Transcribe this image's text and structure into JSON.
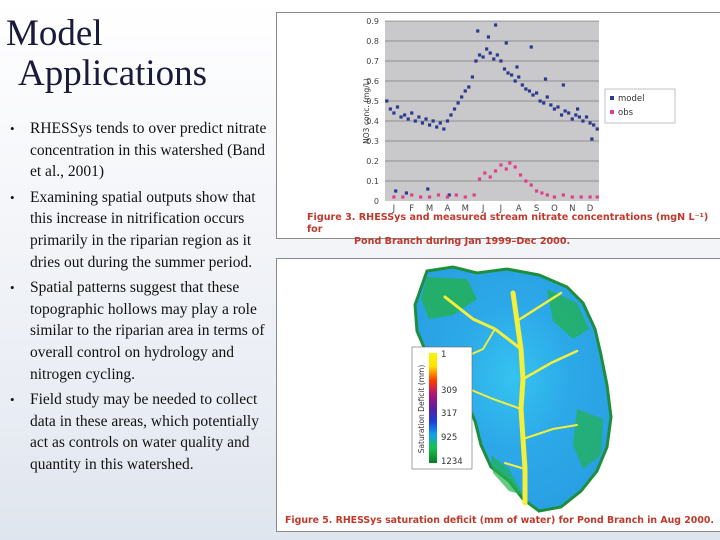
{
  "slide": {
    "title_line1": "Model",
    "title_line2": "Applications",
    "bullets": [
      "RHESSys tends to over predict nitrate concentration in this watershed (Band et al., 2001)",
      "Examining spatial outputs show that this increase in nitrification occurs primarily in the riparian region as it dries out during the summer period.",
      "Spatial patterns suggest that these topographic hollows may play a role similar to the riparian area in terms of overall control on hydrology and nitrogen cycling.",
      "Field study may be needed to collect data in these areas, which potentially act as controls on water quality and quantity in this watershed."
    ]
  },
  "figure3": {
    "caption_line1": "Figure 3. RHESSys and measured stream nitrate concentrations (mgN L⁻¹) for",
    "caption_line2": "Pond Branch during Jan 1999–Dec 2000.",
    "ylabel": "NO3 conc. (mg/L)",
    "colors": {
      "model": "#2b3a8f",
      "obs": "#e0408a",
      "plot_bg": "#c9c9cc"
    }
  },
  "chart_data": {
    "type": "scatter",
    "categories": [
      "J",
      "F",
      "M",
      "A",
      "M",
      "J",
      "J",
      "A",
      "S",
      "O",
      "N",
      "D"
    ],
    "ylabel": "NO3 conc. (mg/L)",
    "y_ticks": [
      "0",
      "0.1",
      "0.2",
      "0.3",
      "0.4",
      "0.5",
      "0.6",
      "0.7",
      "0.8",
      "0.9"
    ],
    "ylim": [
      0,
      0.9
    ],
    "grid": true,
    "legend_position": "right",
    "series": [
      {
        "name": "model",
        "color": "#2b3a8f",
        "points": [
          [
            0.1,
            0.5
          ],
          [
            0.3,
            0.46
          ],
          [
            0.5,
            0.44
          ],
          [
            0.7,
            0.47
          ],
          [
            0.9,
            0.42
          ],
          [
            1.1,
            0.43
          ],
          [
            1.3,
            0.41
          ],
          [
            1.5,
            0.44
          ],
          [
            1.7,
            0.4
          ],
          [
            1.9,
            0.42
          ],
          [
            2.1,
            0.39
          ],
          [
            2.3,
            0.41
          ],
          [
            2.5,
            0.38
          ],
          [
            2.7,
            0.4
          ],
          [
            2.9,
            0.37
          ],
          [
            3.1,
            0.39
          ],
          [
            3.3,
            0.36
          ],
          [
            3.5,
            0.4
          ],
          [
            3.7,
            0.43
          ],
          [
            3.9,
            0.46
          ],
          [
            4.1,
            0.49
          ],
          [
            4.3,
            0.52
          ],
          [
            4.5,
            0.55
          ],
          [
            4.7,
            0.57
          ],
          [
            4.9,
            0.62
          ],
          [
            5.1,
            0.7
          ],
          [
            5.3,
            0.73
          ],
          [
            5.5,
            0.72
          ],
          [
            5.7,
            0.76
          ],
          [
            5.9,
            0.74
          ],
          [
            6.1,
            0.71
          ],
          [
            6.3,
            0.73
          ],
          [
            6.5,
            0.7
          ],
          [
            6.7,
            0.66
          ],
          [
            6.9,
            0.64
          ],
          [
            7.1,
            0.63
          ],
          [
            7.3,
            0.6
          ],
          [
            7.5,
            0.62
          ],
          [
            7.7,
            0.58
          ],
          [
            7.9,
            0.56
          ],
          [
            8.1,
            0.55
          ],
          [
            8.3,
            0.53
          ],
          [
            8.5,
            0.54
          ],
          [
            8.7,
            0.5
          ],
          [
            8.9,
            0.49
          ],
          [
            9.1,
            0.52
          ],
          [
            9.3,
            0.48
          ],
          [
            9.5,
            0.46
          ],
          [
            9.7,
            0.47
          ],
          [
            9.9,
            0.43
          ],
          [
            10.1,
            0.45
          ],
          [
            10.3,
            0.44
          ],
          [
            10.5,
            0.41
          ],
          [
            10.7,
            0.43
          ],
          [
            10.9,
            0.42
          ],
          [
            11.1,
            0.4
          ],
          [
            11.3,
            0.42
          ],
          [
            11.5,
            0.39
          ],
          [
            11.7,
            0.38
          ],
          [
            11.9,
            0.36
          ],
          [
            0.6,
            0.05
          ],
          [
            1.2,
            0.04
          ],
          [
            2.4,
            0.06
          ],
          [
            3.6,
            0.03
          ],
          [
            5.2,
            0.85
          ],
          [
            5.8,
            0.82
          ],
          [
            6.2,
            0.88
          ],
          [
            6.8,
            0.79
          ],
          [
            7.4,
            0.67
          ],
          [
            8.2,
            0.77
          ],
          [
            9.0,
            0.61
          ],
          [
            10.0,
            0.58
          ],
          [
            10.8,
            0.46
          ],
          [
            11.6,
            0.31
          ]
        ]
      },
      {
        "name": "obs",
        "color": "#e0408a",
        "points": [
          [
            0.5,
            0.02
          ],
          [
            1.0,
            0.02
          ],
          [
            1.5,
            0.03
          ],
          [
            2.0,
            0.02
          ],
          [
            2.5,
            0.02
          ],
          [
            3.0,
            0.03
          ],
          [
            3.5,
            0.02
          ],
          [
            4.0,
            0.03
          ],
          [
            4.5,
            0.02
          ],
          [
            5.0,
            0.03
          ],
          [
            5.3,
            0.11
          ],
          [
            5.6,
            0.14
          ],
          [
            5.9,
            0.12
          ],
          [
            6.2,
            0.15
          ],
          [
            6.5,
            0.18
          ],
          [
            6.8,
            0.16
          ],
          [
            7.0,
            0.19
          ],
          [
            7.3,
            0.17
          ],
          [
            7.6,
            0.13
          ],
          [
            7.9,
            0.1
          ],
          [
            8.2,
            0.08
          ],
          [
            8.5,
            0.05
          ],
          [
            8.8,
            0.04
          ],
          [
            9.1,
            0.03
          ],
          [
            9.5,
            0.02
          ],
          [
            10.0,
            0.03
          ],
          [
            10.5,
            0.02
          ],
          [
            11.0,
            0.02
          ],
          [
            11.5,
            0.02
          ],
          [
            11.9,
            0.02
          ]
        ]
      }
    ]
  },
  "figure5": {
    "caption": "Figure 5. RHESSys saturation deficit (mm of water) for Pond Branch in Aug 2000.",
    "legend_title": "Saturation Deficit (mm)",
    "legend_values": [
      "1",
      "309",
      "317",
      "925",
      "1234"
    ]
  }
}
